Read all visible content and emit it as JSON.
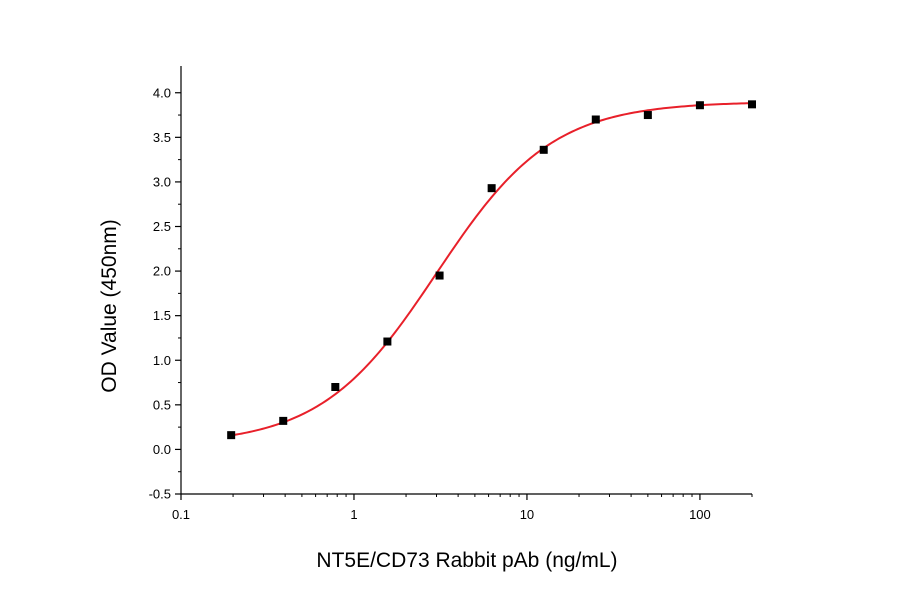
{
  "chart_data": {
    "type": "scatter",
    "title": "",
    "xlabel": "NT5E/CD73 Rabbit pAb (ng/mL)",
    "ylabel": "OD Value (450nm)",
    "x_scale": "log",
    "xlim": [
      0.1,
      200
    ],
    "ylim": [
      -0.5,
      4.3
    ],
    "x_ticks": [
      0.1,
      1,
      10,
      100
    ],
    "x_tick_labels": [
      "0.1",
      "1",
      "10",
      "100"
    ],
    "y_ticks": [
      -0.5,
      0.0,
      0.5,
      1.0,
      1.5,
      2.0,
      2.5,
      3.0,
      3.5,
      4.0
    ],
    "y_tick_labels": [
      "-0.5",
      "0.0",
      "0.5",
      "1.0",
      "1.5",
      "2.0",
      "2.5",
      "3.0",
      "3.5",
      "4.0"
    ],
    "grid": false,
    "legend": "none",
    "series": [
      {
        "kind": "points",
        "x": [
          0.195,
          0.39,
          0.78,
          1.56,
          3.125,
          6.25,
          12.5,
          25,
          50,
          100,
          200
        ],
        "y": [
          0.16,
          0.32,
          0.7,
          1.21,
          1.95,
          2.93,
          3.36,
          3.7,
          3.75,
          3.86,
          3.87
        ],
        "color": "#000000",
        "marker": "square"
      },
      {
        "kind": "fit",
        "model": "4PL",
        "x_range": [
          0.195,
          200
        ],
        "bottom": 0.05,
        "top": 3.9,
        "ec50": 3.0,
        "hill": 1.3,
        "color": "#e8202a"
      }
    ]
  }
}
